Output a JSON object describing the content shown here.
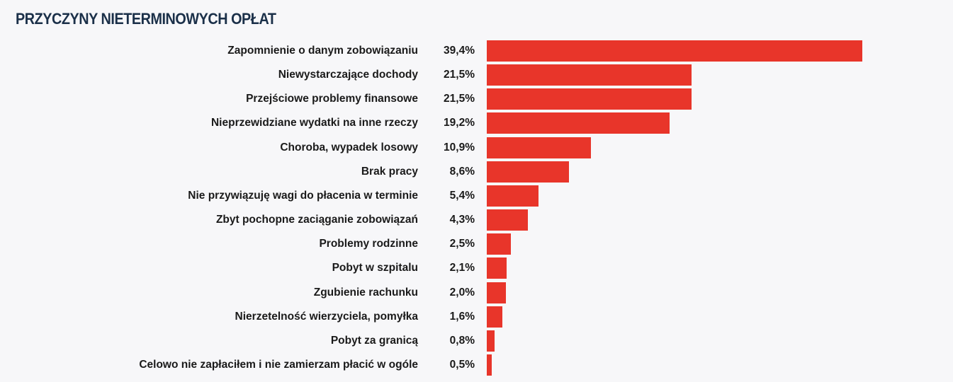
{
  "chart_data": {
    "type": "bar",
    "orientation": "horizontal",
    "title": "PRZYCZYNY NIETERMINOWYCH OPŁAT",
    "categories": [
      "Zapomnienie o danym zobowiązaniu",
      "Niewystarczające dochody",
      "Przejściowe problemy finansowe",
      "Nieprzewidziane wydatki na inne rzeczy",
      "Choroba, wypadek losowy",
      "Brak pracy",
      "Nie przywiązuję wagi do płacenia w terminie",
      "Zbyt pochopne zaciąganie zobowiązań",
      "Problemy rodzinne",
      "Pobyt w szpitalu",
      "Zgubienie rachunku",
      "Nierzetelność wierzyciela, pomyłka",
      "Pobyt za granicą",
      "Celowo nie zapłaciłem i nie zamierzam płacić w ogóle"
    ],
    "values": [
      39.4,
      21.5,
      21.5,
      19.2,
      10.9,
      8.6,
      5.4,
      4.3,
      2.5,
      2.1,
      2.0,
      1.6,
      0.8,
      0.5
    ],
    "value_labels": [
      "39,4%",
      "21,5%",
      "21,5%",
      "19,2%",
      "10,9%",
      "8,6%",
      "5,4%",
      "4,3%",
      "2,5%",
      "2,1%",
      "2,0%",
      "1,6%",
      "0,8%",
      "0,5%"
    ],
    "unit": "%",
    "grid": false,
    "legend": "none",
    "bar_color": "#e8352a",
    "title_color": "#1b3049"
  }
}
